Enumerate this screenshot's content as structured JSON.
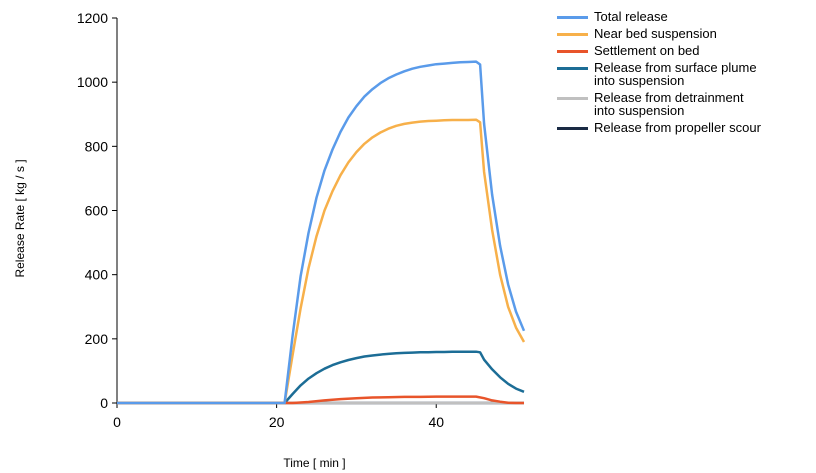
{
  "chart_data": {
    "type": "line",
    "xlabel": "Time [ min ]",
    "ylabel": "Release Rate [ kg / s ]",
    "xlim": [
      0,
      52
    ],
    "ylim": [
      0,
      1200
    ],
    "xticks": [
      "0",
      "20",
      "40"
    ],
    "yticks": [
      "0",
      "200",
      "400",
      "600",
      "800",
      "1000",
      "1200"
    ],
    "grid": false,
    "legend_position": "top-right",
    "series": [
      {
        "name": "Total release",
        "color": "#5a9bea",
        "x": [
          0,
          21,
          22,
          23,
          24,
          25,
          26,
          27,
          28,
          29,
          30,
          31,
          32,
          33,
          34,
          35,
          36,
          37,
          38,
          39,
          40,
          41,
          42,
          43,
          44,
          45,
          45.5,
          46,
          47,
          48,
          49,
          50,
          51
        ],
        "y": [
          0,
          0,
          210,
          395,
          530,
          640,
          725,
          790,
          845,
          890,
          925,
          955,
          978,
          997,
          1012,
          1024,
          1034,
          1042,
          1048,
          1052,
          1056,
          1058,
          1060,
          1062,
          1063,
          1064,
          1055,
          870,
          650,
          490,
          370,
          285,
          225
        ]
      },
      {
        "name": "Near bed suspension",
        "color": "#f7b04a",
        "x": [
          0,
          21,
          22,
          23,
          24,
          25,
          26,
          27,
          28,
          29,
          30,
          31,
          32,
          33,
          34,
          35,
          36,
          37,
          38,
          39,
          40,
          41,
          42,
          43,
          44,
          45,
          45.5,
          46,
          47,
          48,
          49,
          50,
          51
        ],
        "y": [
          0,
          0,
          150,
          295,
          420,
          520,
          600,
          660,
          710,
          750,
          782,
          808,
          828,
          843,
          855,
          864,
          870,
          874,
          877,
          879,
          880,
          881,
          882,
          882,
          882,
          883,
          875,
          720,
          540,
          400,
          300,
          235,
          190
        ]
      },
      {
        "name": "Settlement on bed",
        "color": "#e8542a",
        "x": [
          0,
          21,
          22,
          24,
          26,
          28,
          30,
          32,
          34,
          36,
          38,
          40,
          42,
          44,
          45,
          46,
          47,
          48,
          49,
          50,
          51
        ],
        "y": [
          0,
          0,
          0,
          3,
          8,
          12,
          15,
          17,
          18,
          19,
          19,
          20,
          20,
          20,
          20,
          15,
          8,
          4,
          1,
          0,
          0
        ]
      },
      {
        "name": "Release from surface plume\ninto suspension",
        "color": "#1c6d96",
        "x": [
          0,
          21,
          22,
          23,
          24,
          25,
          26,
          27,
          28,
          29,
          30,
          31,
          32,
          33,
          34,
          35,
          36,
          37,
          38,
          39,
          40,
          41,
          42,
          43,
          44,
          45,
          45.5,
          46,
          47,
          48,
          49,
          50,
          51
        ],
        "y": [
          0,
          0,
          28,
          55,
          76,
          93,
          107,
          118,
          127,
          134,
          140,
          145,
          148,
          151,
          153,
          155,
          156,
          157,
          158,
          158,
          159,
          159,
          160,
          160,
          160,
          160,
          158,
          135,
          105,
          80,
          60,
          45,
          35
        ]
      },
      {
        "name": "Release from detrainment\ninto suspension",
        "color": "#c0c0c0",
        "x": [
          0,
          51
        ],
        "y": [
          0,
          0
        ]
      },
      {
        "name": "Release from propeller scour",
        "color": "#1a2a44",
        "x": [
          0,
          51
        ],
        "y": [
          0,
          0
        ]
      }
    ]
  }
}
